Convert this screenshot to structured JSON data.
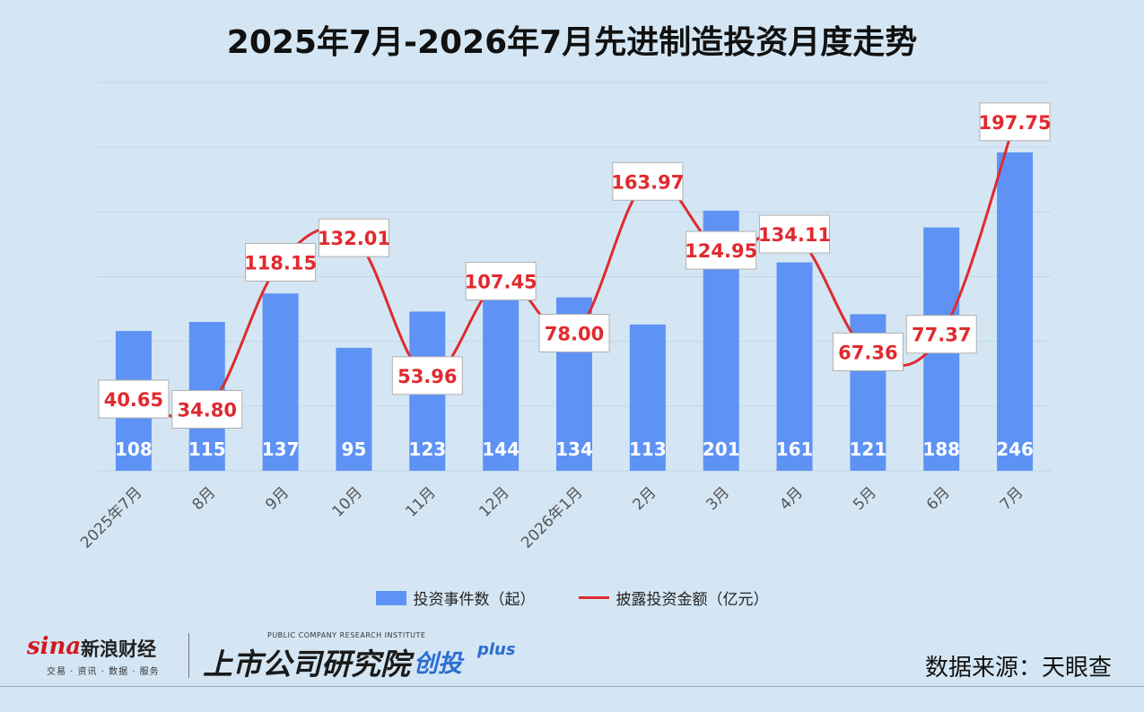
{
  "title": "2025年7月-2026年7月先进制造投资月度走势",
  "chart_data": {
    "type": "bar+line",
    "categories": [
      "2025年7月",
      "8月",
      "9月",
      "10月",
      "11月",
      "12月",
      "2026年1月",
      "2月",
      "3月",
      "4月",
      "5月",
      "6月",
      "7月"
    ],
    "series": [
      {
        "name": "投资事件数（起）",
        "type": "bar",
        "color": "#5e93f5",
        "values": [
          108,
          115,
          137,
          95,
          123,
          144,
          134,
          113,
          201,
          161,
          121,
          188,
          246
        ]
      },
      {
        "name": "披露投资金额（亿元）",
        "type": "line",
        "color": "#e02a2f",
        "values": [
          40.65,
          34.8,
          118.15,
          132.01,
          53.96,
          107.45,
          78.0,
          163.97,
          124.95,
          134.11,
          67.36,
          77.37,
          197.75
        ],
        "labels": [
          "40.65",
          "34.80",
          "118.15",
          "132.01",
          "53.96",
          "107.45",
          "78.00",
          "163.97",
          "124.95",
          "134.11",
          "67.36",
          "77.37",
          "197.75"
        ]
      }
    ],
    "bar_ylim": [
      0,
      300
    ],
    "line_ylim": [
      0,
      220
    ],
    "grid": true,
    "legend_position": "bottom"
  },
  "footer": {
    "sina_logo": "sina",
    "sina_name": "新浪财经",
    "sina_sub": "交易 · 资讯 · 数据 · 服务",
    "inst_small": "PUBLIC COMPANY RESEARCH INSTITUTE",
    "inst_name": "上市公司研究院",
    "inst_tag": "创投",
    "inst_plus": "plus",
    "source": "数据来源：天眼查"
  }
}
